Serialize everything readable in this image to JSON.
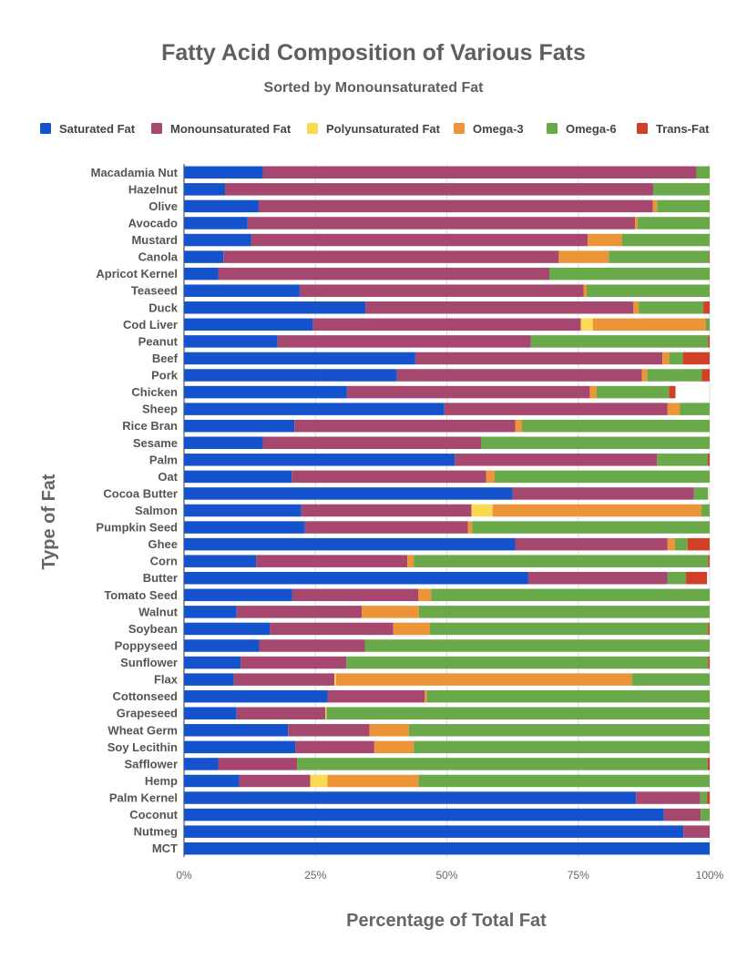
{
  "chart_data": {
    "type": "bar",
    "orientation": "horizontal",
    "stacked": true,
    "title": "Fatty Acid Composition of Various Fats",
    "subtitle": "Sorted by Monounsaturated Fat",
    "xlabel": "Percentage of Total Fat",
    "ylabel": "Type of Fat",
    "xlim": [
      0,
      100
    ],
    "x_ticks": [
      "0%",
      "25%",
      "50%",
      "75%",
      "100%"
    ],
    "legend_position": "top",
    "grid": "vertical",
    "categories": [
      "Macadamia Nut",
      "Hazelnut",
      "Olive",
      "Avocado",
      "Mustard",
      "Canola",
      "Apricot Kernel",
      "Teaseed",
      "Duck",
      "Cod Liver",
      "Peanut",
      "Beef",
      "Pork",
      "Chicken",
      "Sheep",
      "Rice Bran",
      "Sesame",
      "Palm",
      "Oat",
      "Cocoa Butter",
      "Salmon",
      "Pumpkin Seed",
      "Ghee",
      "Corn",
      "Butter",
      "Tomato Seed",
      "Walnut",
      "Soybean",
      "Poppyseed",
      "Sunflower",
      "Flax",
      "Cottonseed",
      "Grapeseed",
      "Wheat Germ",
      "Soy Lecithin",
      "Safflower",
      "Hemp",
      "Palm Kernel",
      "Coconut",
      "Nutmeg",
      "MCT"
    ],
    "series": [
      {
        "name": "Saturated Fat",
        "color": "#1453cc",
        "values": [
          15,
          7.8,
          14.2,
          12.1,
          12.8,
          7.5,
          6.5,
          22,
          34.5,
          24.5,
          17.8,
          44,
          40.5,
          31,
          49.5,
          21,
          15,
          51.5,
          20.5,
          62.5,
          22.3,
          23,
          63,
          13.7,
          65.5,
          20.6,
          10,
          16.3,
          14.3,
          10.8,
          9.5,
          27.3,
          10,
          19.8,
          21.2,
          6.5,
          10.5,
          86,
          91.3,
          95,
          100
        ]
      },
      {
        "name": "Monounsaturated Fat",
        "color": "#a6476f",
        "values": [
          82.5,
          81.5,
          75,
          73.7,
          64,
          63.8,
          63,
          54,
          51,
          51,
          48.2,
          47,
          46.6,
          46.2,
          42.5,
          42,
          41.5,
          38.5,
          37,
          34.5,
          32.4,
          31,
          29,
          28.8,
          26.5,
          24,
          23.8,
          23.5,
          20.1,
          20.1,
          19.1,
          18.5,
          16.9,
          15.5,
          15,
          15,
          13.5,
          12.2,
          7,
          5,
          0
        ]
      },
      {
        "name": "Polyunsaturated Fat",
        "color": "#fbd952",
        "values": [
          0,
          0,
          0,
          0,
          0,
          0,
          0,
          0,
          0,
          2.3,
          0,
          0,
          0,
          0,
          0,
          0,
          0,
          0,
          0,
          0,
          4,
          0,
          0,
          0,
          0,
          0,
          0,
          0,
          0,
          0,
          0.3,
          0,
          0.2,
          0,
          0,
          0,
          3.3,
          0,
          0,
          0,
          0
        ]
      },
      {
        "name": "Omega-3",
        "color": "#ec9538",
        "values": [
          0,
          0,
          0.8,
          0.5,
          6.5,
          9.5,
          0,
          0.6,
          1,
          21.5,
          0,
          1.3,
          1,
          1.3,
          2.3,
          1.3,
          0,
          0,
          1.6,
          0,
          39.7,
          0.8,
          1.4,
          1.2,
          0,
          2.4,
          10.9,
          7,
          0,
          0,
          56.3,
          0.4,
          0,
          7.5,
          7.5,
          0,
          17.3,
          0,
          0,
          0,
          0
        ]
      },
      {
        "name": "Omega-6",
        "color": "#69a94a",
        "values": [
          2.5,
          10.7,
          10,
          13.7,
          16.7,
          19.1,
          30.5,
          23.4,
          12.3,
          0.7,
          33.7,
          2.6,
          10.4,
          13.8,
          5.7,
          35.7,
          43.5,
          9.6,
          40.9,
          2.7,
          1.6,
          45.2,
          2.4,
          56,
          3.5,
          53,
          55.3,
          52.9,
          65.6,
          68.8,
          14.8,
          53.8,
          72.9,
          57.2,
          56.3,
          78.1,
          55.4,
          1.3,
          1.7,
          0,
          0
        ]
      },
      {
        "name": "Trans-Fat",
        "color": "#d23f27",
        "values": [
          0,
          0,
          0,
          0,
          0,
          0.1,
          0,
          0,
          1.2,
          0,
          0.3,
          5.1,
          1.5,
          1.2,
          0,
          0,
          0,
          0.4,
          0,
          0,
          0,
          0,
          4.2,
          0.3,
          4,
          0,
          0,
          0.3,
          0,
          0.3,
          0.3,
          0,
          0,
          0,
          0,
          0.4,
          0,
          0.5,
          0,
          0,
          0
        ]
      }
    ]
  }
}
